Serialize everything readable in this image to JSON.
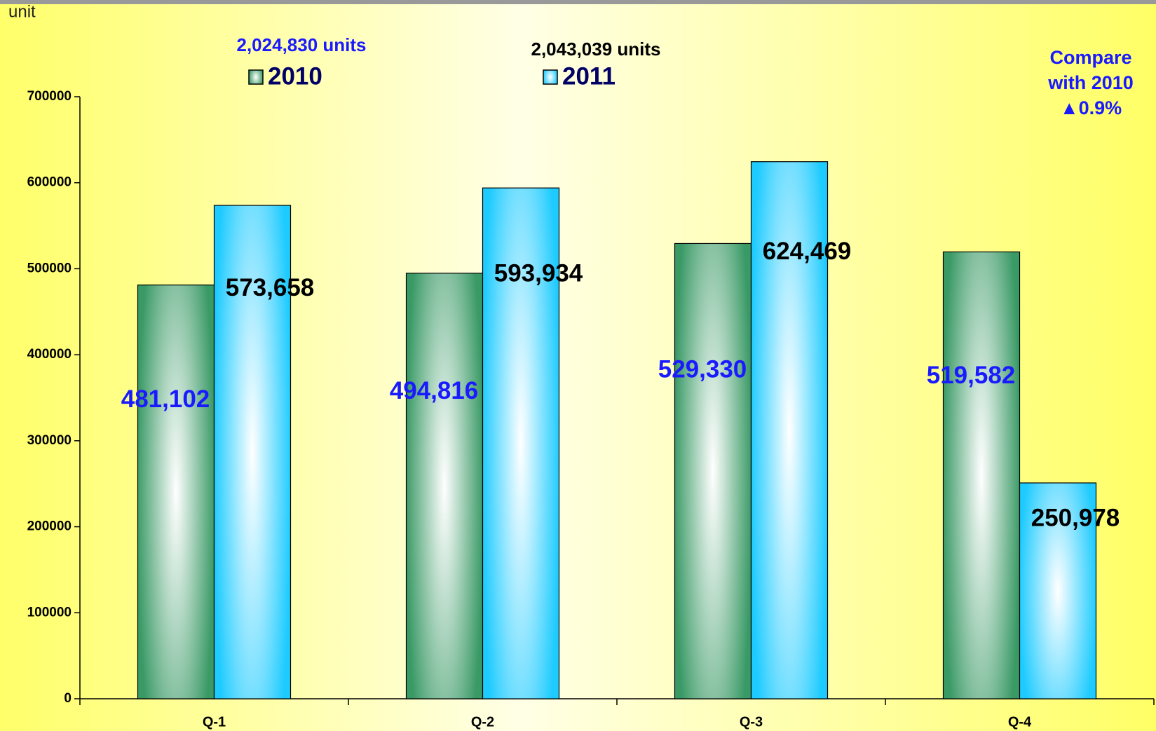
{
  "chart_data": {
    "type": "bar",
    "y_axis_label": "unit",
    "categories": [
      "Q-1",
      "Q-2",
      "Q-3",
      "Q-4"
    ],
    "series": [
      {
        "name": "2010",
        "color": "#3a9a66",
        "label_color": "#1a1aff",
        "total_label": "2,024,830 units",
        "total_color": "#1a1aff",
        "values": [
          481102,
          494816,
          529330,
          519582
        ],
        "value_labels": [
          "481,102",
          "494,816",
          "529,330",
          "519,582"
        ]
      },
      {
        "name": "2011",
        "color": "#1ecbff",
        "label_color": "#000000",
        "total_label": "2,043,039 units",
        "total_color": "#000000",
        "values": [
          573658,
          593934,
          624469,
          250978
        ],
        "value_labels": [
          "573,658",
          "593,934",
          "624,469",
          "250,978"
        ]
      }
    ],
    "annotation": [
      "Compare",
      "with  2010",
      "▲0.9%"
    ],
    "ylim": [
      0,
      700000
    ],
    "yticks": [
      0,
      100000,
      200000,
      300000,
      400000,
      500000,
      600000,
      700000
    ],
    "grid": false
  }
}
